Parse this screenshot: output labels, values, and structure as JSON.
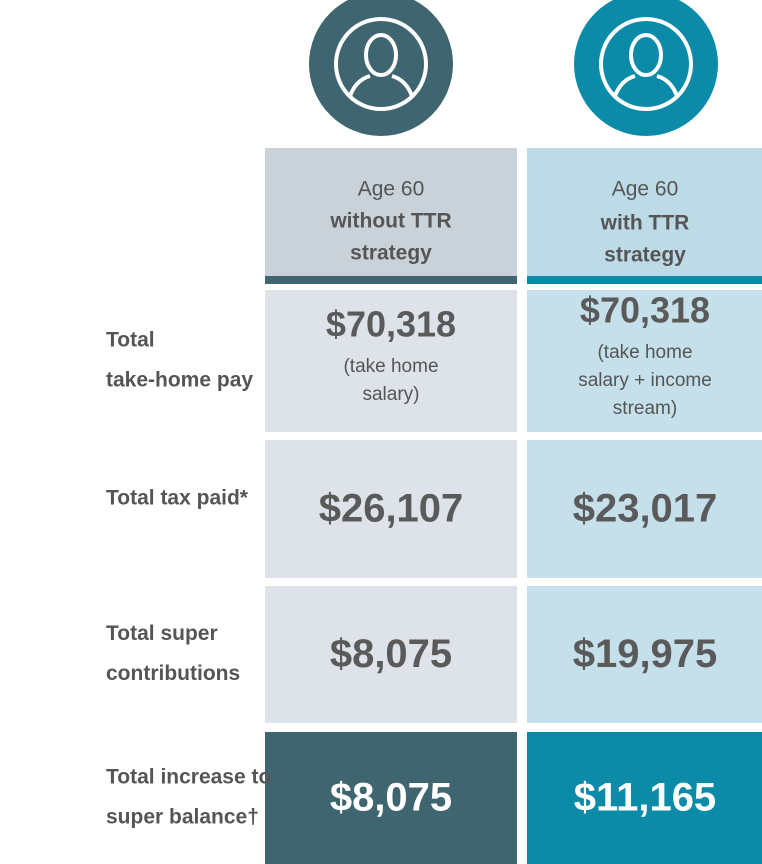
{
  "columns": [
    {
      "lines": [
        "Age 60",
        "without TTR",
        "strategy"
      ]
    },
    {
      "lines": [
        "Age 60",
        "with TTR",
        "strategy"
      ]
    }
  ],
  "rows": [
    {
      "label": [
        "Total",
        "take-home pay"
      ],
      "cells": [
        {
          "value": "$70,318",
          "note": [
            "(take home",
            "salary)"
          ]
        },
        {
          "value": "$70,318",
          "note": [
            "(take home",
            "salary + income",
            "stream)"
          ]
        }
      ]
    },
    {
      "label": [
        "Total tax paid*"
      ],
      "cells": [
        {
          "value": "$26,107"
        },
        {
          "value": "$23,017"
        }
      ]
    },
    {
      "label": [
        "Total super",
        "contributions"
      ],
      "cells": [
        {
          "value": "$8,075"
        },
        {
          "value": "$19,975"
        }
      ]
    },
    {
      "label": [
        "Total increase to",
        "super balance†"
      ],
      "cells": [
        {
          "value": "$8,075"
        },
        {
          "value": "$11,165"
        }
      ]
    }
  ]
}
